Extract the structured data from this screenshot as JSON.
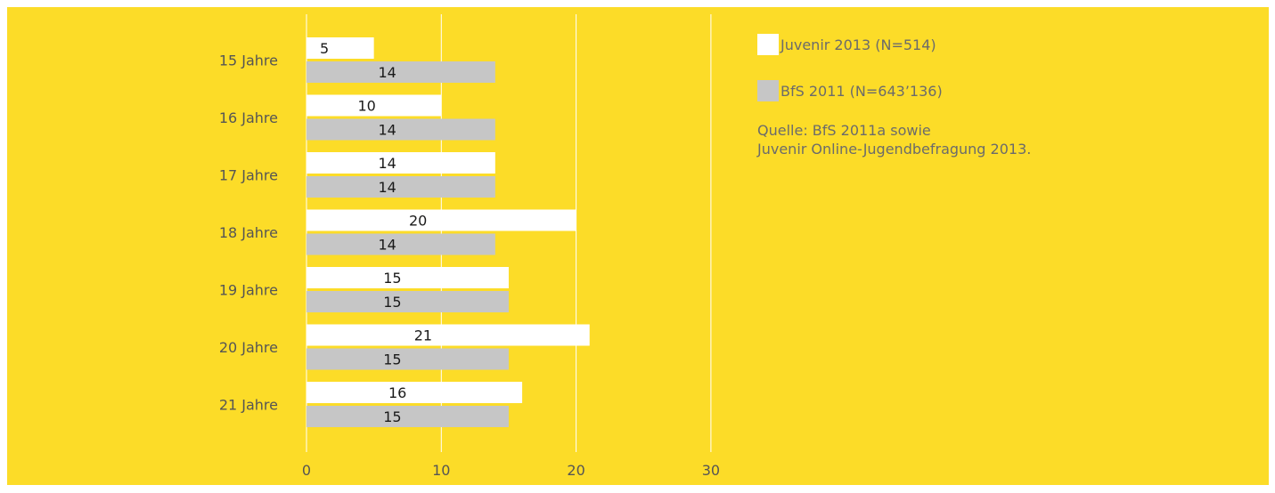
{
  "colors": {
    "background": "#fcdc28",
    "series_juvenir": "#ffffff",
    "series_bfs": "#c6c6c6",
    "gridline": "#ffffff",
    "label_text": "#555555",
    "value_text": "#1a1a1a"
  },
  "legend": {
    "items": [
      {
        "label": "Juvenir 2013 (N=514)",
        "color": "#ffffff"
      },
      {
        "label": "BfS 2011 (N=643’136)",
        "color": "#c6c6c6"
      }
    ]
  },
  "source": {
    "line1": "Quelle: BfS 2011a sowie",
    "line2": "Juvenir Online-Jugendbefragung 2013."
  },
  "chart_data": {
    "type": "bar",
    "orientation": "horizontal",
    "categories": [
      "15 Jahre",
      "16 Jahre",
      "17 Jahre",
      "18 Jahre",
      "19 Jahre",
      "20 Jahre",
      "21 Jahre"
    ],
    "series": [
      {
        "name": "Juvenir 2013 (N=514)",
        "values": [
          5,
          10,
          14,
          20,
          15,
          21,
          16
        ]
      },
      {
        "name": "BfS 2011 (N=643’136)",
        "values": [
          14,
          14,
          14,
          14,
          15,
          15,
          15
        ]
      }
    ],
    "xlim": [
      0,
      30
    ],
    "xticks": [
      0,
      10,
      20,
      30
    ],
    "grid": true,
    "legend_position": "right"
  }
}
